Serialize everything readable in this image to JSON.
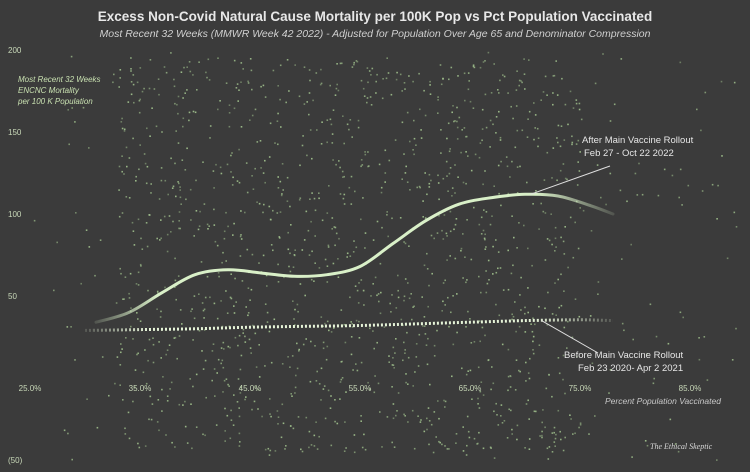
{
  "chart_data": {
    "type": "scatter",
    "title": "Excess Non-Covid Natural Cause Mortality per 100K Pop vs Pct Population Vaccinated",
    "subtitle": "Most Recent 32 Weeks (MMWR Week 42 2022) - Adjusted for Population Over Age 65 and Denominator Compression",
    "ylabel_lines": [
      "Most Recent  32 Weeks",
      "ENCNC  Mortality",
      "per 100 K Population"
    ],
    "xlabel": "Percent  Population Vaccinated",
    "xlim": [
      0.25,
      0.9
    ],
    "ylim": [
      -50,
      200
    ],
    "y_ticks": [
      {
        "value": 200,
        "label": "200"
      },
      {
        "value": 150,
        "label": "150"
      },
      {
        "value": 100,
        "label": "100"
      },
      {
        "value": 50,
        "label": "50"
      },
      {
        "value": -50,
        "label": "(50)"
      }
    ],
    "x_ticks": [
      {
        "value": 0.25,
        "label": "25.0%"
      },
      {
        "value": 0.35,
        "label": "35.0%"
      },
      {
        "value": 0.45,
        "label": "45.0%"
      },
      {
        "value": 0.55,
        "label": "55.0%"
      },
      {
        "value": 0.65,
        "label": "65.0%"
      },
      {
        "value": 0.75,
        "label": "75.0%"
      },
      {
        "value": 0.85,
        "label": "85.0%"
      }
    ],
    "grid": false,
    "series": [
      {
        "name": "After Main Vaccine Rollout",
        "style": "solid-curve",
        "color": "#d9f0c8",
        "x": [
          0.31,
          0.34,
          0.37,
          0.4,
          0.43,
          0.46,
          0.49,
          0.52,
          0.55,
          0.58,
          0.61,
          0.64,
          0.67,
          0.7,
          0.73,
          0.76,
          0.78
        ],
        "y": [
          34,
          40,
          52,
          63,
          66,
          64,
          62,
          63,
          68,
          82,
          96,
          106,
          110,
          112,
          111,
          105,
          100
        ]
      },
      {
        "name": "Before Main Vaccine Rollout",
        "style": "dotted-curve",
        "color": "#e6f4d8",
        "x": [
          0.3,
          0.35,
          0.4,
          0.45,
          0.5,
          0.55,
          0.6,
          0.65,
          0.7,
          0.75,
          0.78
        ],
        "y": [
          29,
          29.5,
          30,
          31,
          31.5,
          32,
          33,
          34,
          35,
          35.5,
          35
        ]
      }
    ],
    "annotations": [
      {
        "line1": "After Main Vaccine Rollout",
        "line2": "Feb 27 - Oct 22 2022",
        "points_to": [
          0.705,
          112
        ]
      },
      {
        "line1": "Before Main Vaccine Rollout",
        "line2": "Feb 23 2020-  Apr 2 2021",
        "points_to": [
          0.715,
          35
        ]
      }
    ],
    "scatter_points": "dense cloud, approx 1500 points spanning x 0.25-0.90, y -50-200",
    "scatter_color": "#9fbf8c"
  },
  "signature": "The Ethical Skeptic"
}
